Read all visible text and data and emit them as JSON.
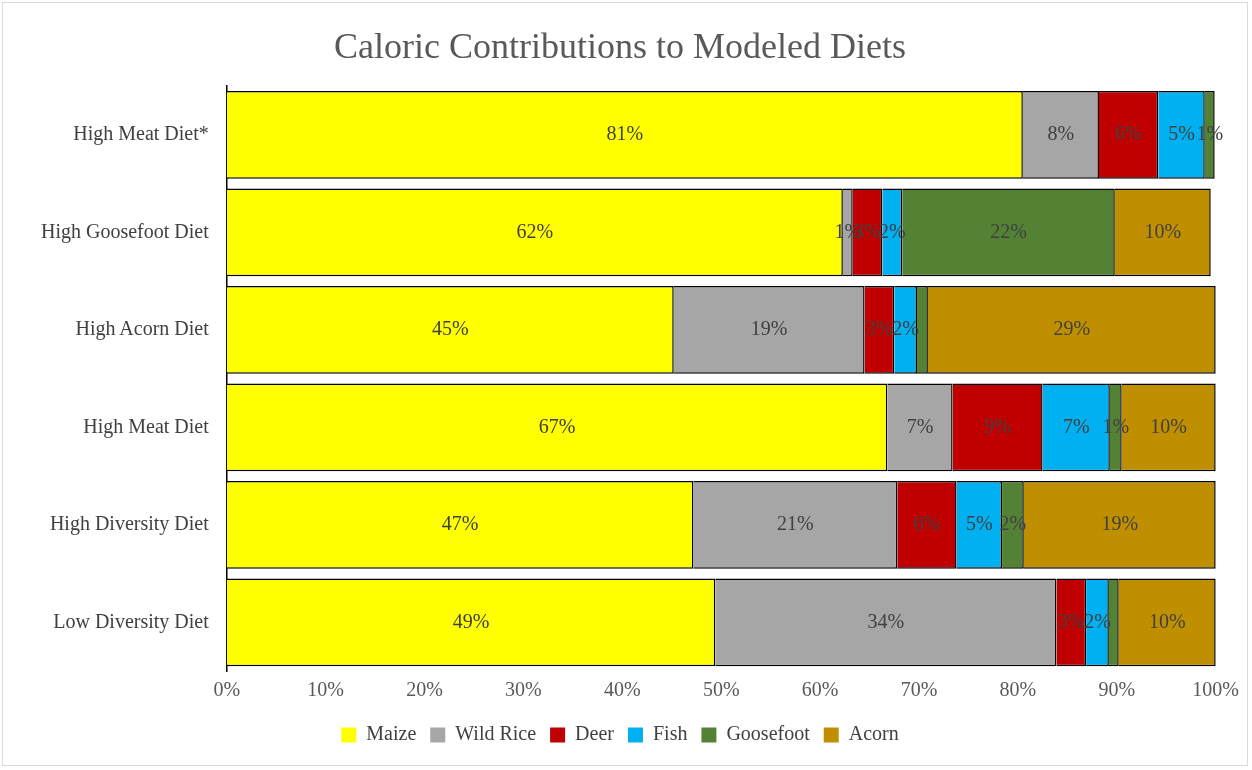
{
  "chart_data": {
    "type": "bar",
    "title": "Caloric Contributions to Modeled Diets",
    "orientation": "horizontal",
    "stacked": true,
    "legend": "bottom",
    "categories": [
      "High Meat Diet*",
      "High Goosefoot Diet",
      "High Acorn Diet",
      "High Meat Diet",
      "High Diversity Diet",
      "Low Diversity Diet"
    ],
    "xlim": [
      0,
      100
    ],
    "xticks": [
      {
        "value": 0,
        "label": "0%"
      },
      {
        "value": 10,
        "label": "10%"
      },
      {
        "value": 20,
        "label": "20%"
      },
      {
        "value": 30,
        "label": "30%"
      },
      {
        "value": 40,
        "label": "40%"
      },
      {
        "value": 50,
        "label": "50%"
      },
      {
        "value": 60,
        "label": "60%"
      },
      {
        "value": 70,
        "label": "70%"
      },
      {
        "value": 80,
        "label": "80%"
      },
      {
        "value": 90,
        "label": "90%"
      },
      {
        "value": 100,
        "label": "100%"
      }
    ],
    "series": [
      {
        "name": "Maize",
        "color": "#ffff00",
        "values": [
          80.5,
          62.3,
          45.2,
          66.8,
          47.2,
          49.4
        ],
        "value_labels": [
          "81%",
          "62%",
          "45%",
          "67%",
          "47%",
          "49%"
        ]
      },
      {
        "name": "Wild Rice",
        "color": "#a6a6a6",
        "values": [
          7.7,
          1.0,
          19.3,
          6.6,
          20.6,
          34.5
        ],
        "value_labels": [
          "8%",
          "1%",
          "19%",
          "7%",
          "21%",
          "34%"
        ]
      },
      {
        "name": "Deer",
        "color": "#c00000",
        "values": [
          6.0,
          3.0,
          3.0,
          9.1,
          6.0,
          3.0
        ],
        "value_labels": [
          "6%",
          "3%",
          "3%",
          "9%",
          "6%",
          "3%"
        ]
      },
      {
        "name": "Fish",
        "color": "#00b0f0",
        "values": [
          4.7,
          2.0,
          2.3,
          6.8,
          4.6,
          2.3
        ],
        "value_labels": [
          "5%",
          "2%",
          "2%",
          "7%",
          "5%",
          "2%"
        ]
      },
      {
        "name": "Goosefoot",
        "color": "#548235",
        "values": [
          1.0,
          21.5,
          1.1,
          1.2,
          2.2,
          1.0
        ],
        "value_labels": [
          "1%",
          "22%",
          null,
          "1%",
          "2%",
          null
        ]
      },
      {
        "name": "Acorn",
        "color": "#bf8f00",
        "values": [
          0,
          9.7,
          29.1,
          9.5,
          19.4,
          9.8
        ],
        "value_labels": [
          null,
          "10%",
          "29%",
          "10%",
          "19%",
          "10%"
        ]
      }
    ]
  }
}
